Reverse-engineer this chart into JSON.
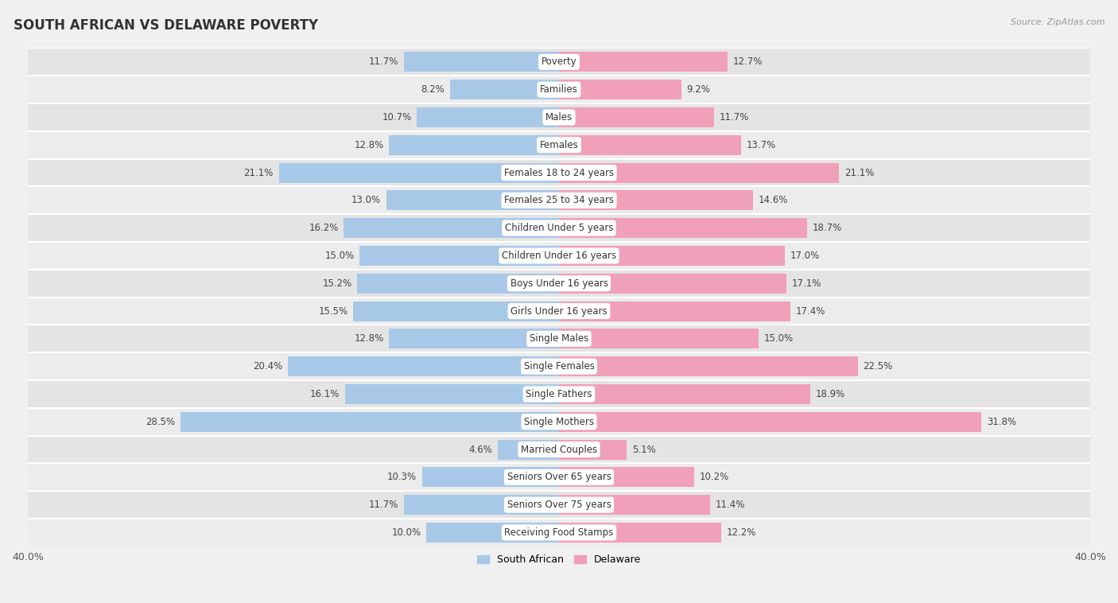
{
  "title": "SOUTH AFRICAN VS DELAWARE POVERTY",
  "source": "Source: ZipAtlas.com",
  "categories": [
    "Poverty",
    "Families",
    "Males",
    "Females",
    "Females 18 to 24 years",
    "Females 25 to 34 years",
    "Children Under 5 years",
    "Children Under 16 years",
    "Boys Under 16 years",
    "Girls Under 16 years",
    "Single Males",
    "Single Females",
    "Single Fathers",
    "Single Mothers",
    "Married Couples",
    "Seniors Over 65 years",
    "Seniors Over 75 years",
    "Receiving Food Stamps"
  ],
  "south_african": [
    11.7,
    8.2,
    10.7,
    12.8,
    21.1,
    13.0,
    16.2,
    15.0,
    15.2,
    15.5,
    12.8,
    20.4,
    16.1,
    28.5,
    4.6,
    10.3,
    11.7,
    10.0
  ],
  "delaware": [
    12.7,
    9.2,
    11.7,
    13.7,
    21.1,
    14.6,
    18.7,
    17.0,
    17.1,
    17.4,
    15.0,
    22.5,
    18.9,
    31.8,
    5.1,
    10.2,
    11.4,
    12.2
  ],
  "sa_color": "#A8C8E8",
  "de_color": "#F0A0B8",
  "sa_label": "South African",
  "de_label": "Delaware",
  "xlim": 40.0,
  "row_color_odd": "#e8e8e8",
  "row_color_even": "#f2f2f2",
  "bg_color": "#f0f0f0",
  "bar_height": 0.72,
  "label_fontsize": 8.5,
  "cat_fontsize": 8.5,
  "title_fontsize": 12
}
